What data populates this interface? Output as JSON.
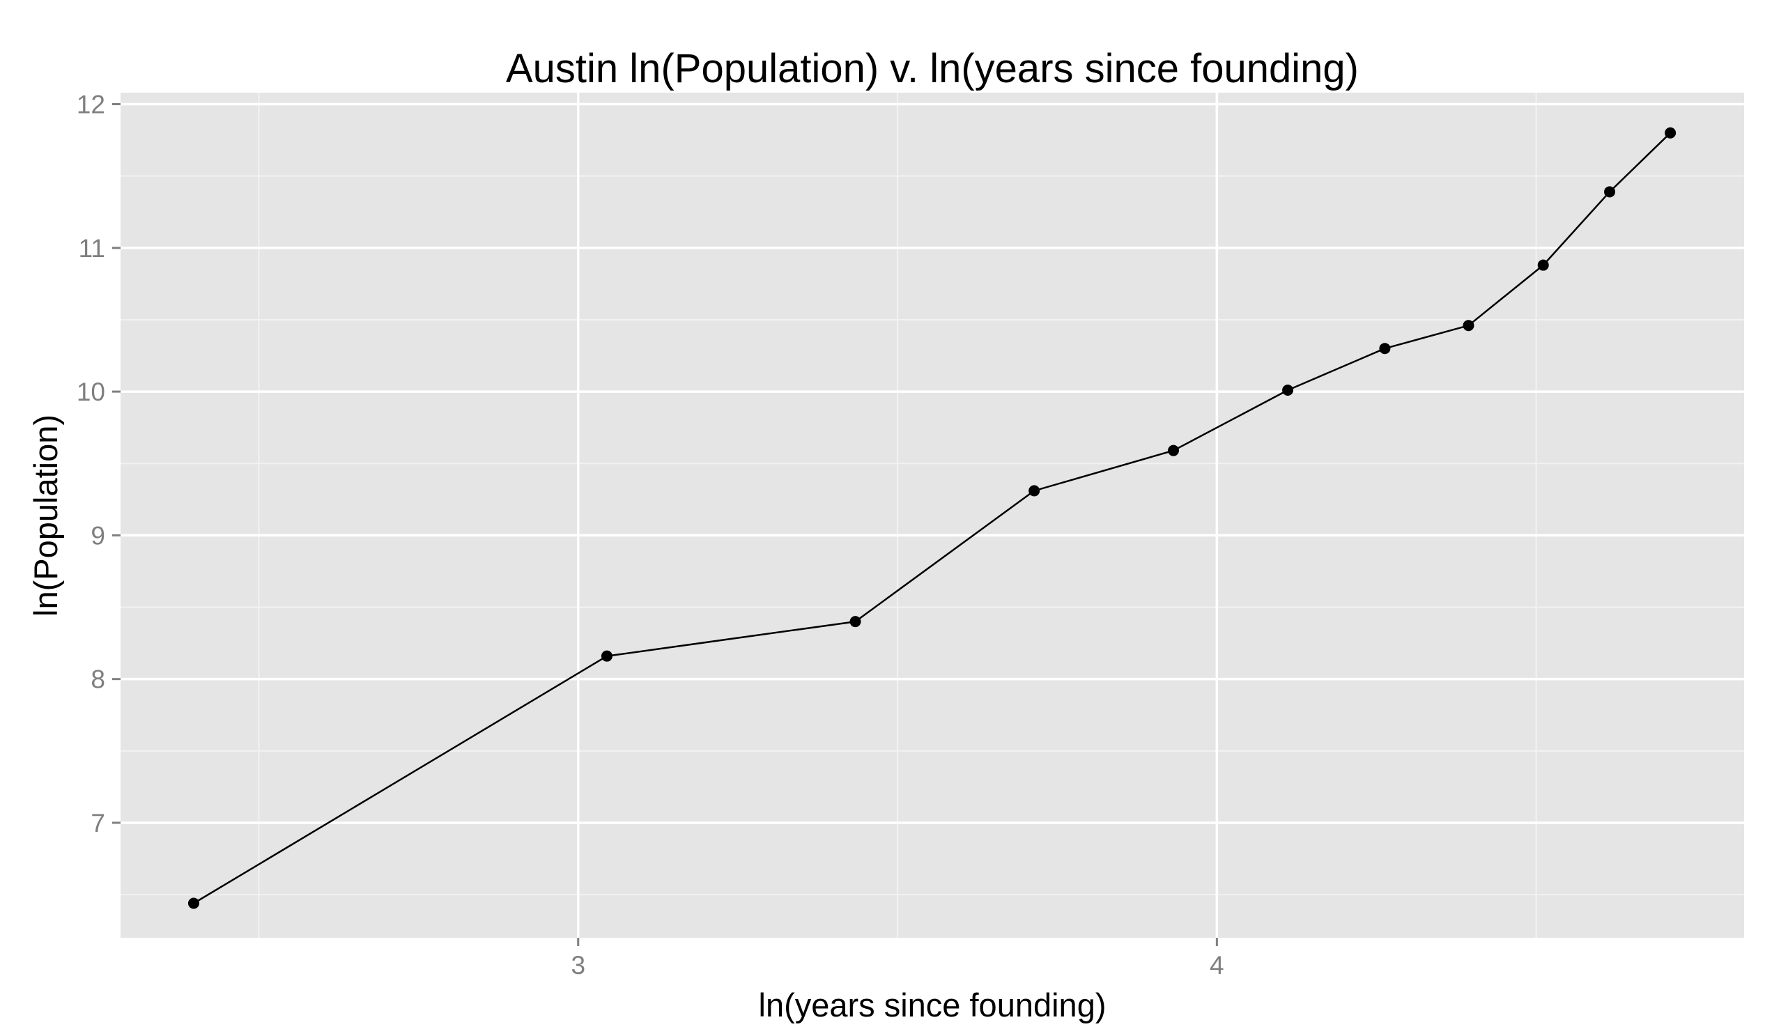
{
  "chart_data": {
    "type": "line",
    "title": "Austin ln(Population) v. ln(years since founding)",
    "xlabel": "ln(years since founding)",
    "ylabel": "ln(Population)",
    "xlim": [
      2.2835,
      4.8255
    ],
    "ylim": [
      6.2,
      12.08
    ],
    "x_ticks": [
      3,
      4
    ],
    "x_tick_labels": [
      "3",
      "4"
    ],
    "y_ticks": [
      7,
      8,
      9,
      10,
      11,
      12
    ],
    "y_tick_labels": [
      "7",
      "8",
      "9",
      "10",
      "11",
      "12"
    ],
    "grid": true,
    "legend": "none",
    "colors": {
      "panel": "#e5e5e5",
      "grid_major": "#ffffff",
      "grid_minor": "#f2f2f2",
      "line": "#000000",
      "point": "#000000",
      "tick_label": "#7f7f7f"
    },
    "series": [
      {
        "x": [
          2.398,
          3.045,
          3.434,
          3.714,
          3.932,
          4.111,
          4.263,
          4.394,
          4.511,
          4.615,
          4.71
        ],
        "y": [
          6.44,
          8.16,
          8.4,
          9.31,
          9.59,
          10.01,
          10.3,
          10.46,
          10.88,
          11.39,
          11.8
        ]
      }
    ]
  }
}
